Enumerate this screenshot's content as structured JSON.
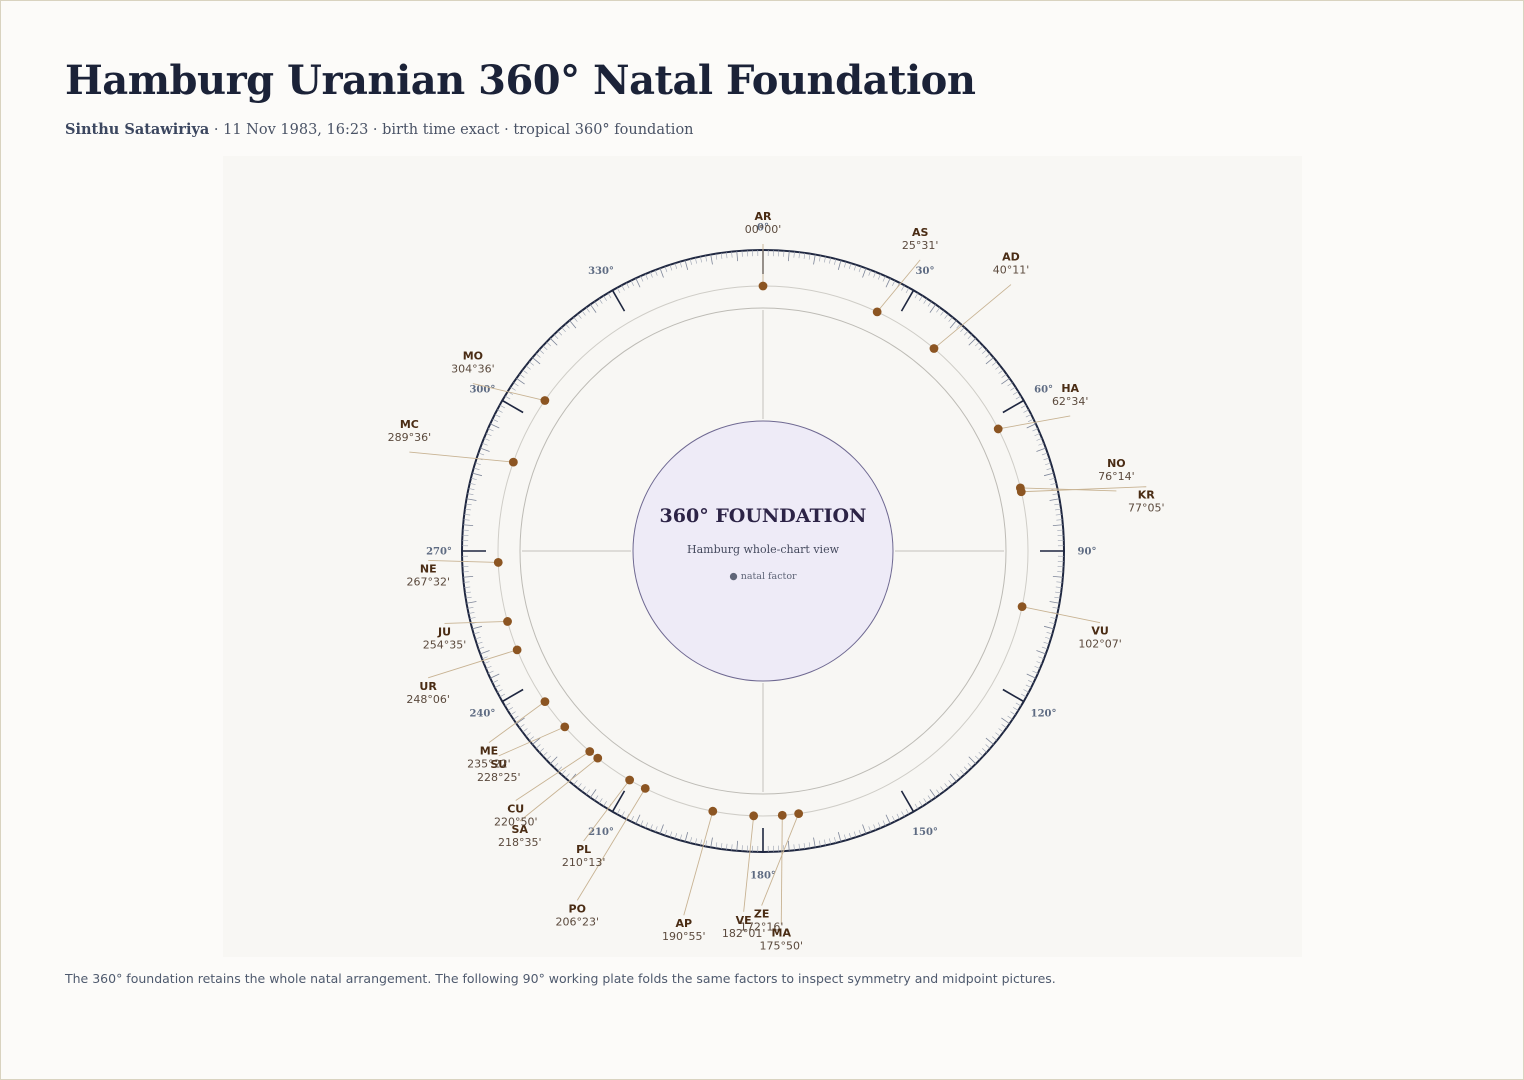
{
  "header": {
    "title": "Hamburg Uranian 360° Natal Foundation",
    "subject_name": "Sinthu Satawiriya",
    "subject_details": " · 11 Nov 1983, 16:23 · birth time exact · tropical 360° foundation"
  },
  "dial": {
    "center_title": "360° FOUNDATION",
    "center_subtitle": "Hamburg whole-chart view",
    "center_legend": "● natal factor",
    "degree_labels": [
      {
        "deg": 0,
        "label": "0°"
      },
      {
        "deg": 30,
        "label": "30°"
      },
      {
        "deg": 60,
        "label": "60°"
      },
      {
        "deg": 90,
        "label": "90°"
      },
      {
        "deg": 120,
        "label": "120°"
      },
      {
        "deg": 150,
        "label": "150°"
      },
      {
        "deg": 180,
        "label": "180°"
      },
      {
        "deg": 210,
        "label": "210°"
      },
      {
        "deg": 240,
        "label": "240°"
      },
      {
        "deg": 270,
        "label": "270°"
      },
      {
        "deg": 300,
        "label": "300°"
      },
      {
        "deg": 330,
        "label": "330°"
      }
    ],
    "factors": [
      {
        "code": "AR",
        "position": "00°00'",
        "degrees": 0.0
      },
      {
        "code": "AS",
        "position": "25°31'",
        "degrees": 25.52
      },
      {
        "code": "AD",
        "position": "40°11'",
        "degrees": 40.18
      },
      {
        "code": "HA",
        "position": "62°34'",
        "degrees": 62.57
      },
      {
        "code": "NO",
        "position": "76°14'",
        "degrees": 76.23
      },
      {
        "code": "KR",
        "position": "77°05'",
        "degrees": 77.08
      },
      {
        "code": "VU",
        "position": "102°07'",
        "degrees": 102.12
      },
      {
        "code": "ZE",
        "position": "172°16'",
        "degrees": 172.27
      },
      {
        "code": "MA",
        "position": "175°50'",
        "degrees": 175.83
      },
      {
        "code": "VE",
        "position": "182°01'",
        "degrees": 182.02
      },
      {
        "code": "AP",
        "position": "190°55'",
        "degrees": 190.92
      },
      {
        "code": "PO",
        "position": "206°23'",
        "degrees": 206.38
      },
      {
        "code": "PL",
        "position": "210°13'",
        "degrees": 210.22
      },
      {
        "code": "SA",
        "position": "218°35'",
        "degrees": 218.58
      },
      {
        "code": "CU",
        "position": "220°50'",
        "degrees": 220.83
      },
      {
        "code": "SU",
        "position": "228°25'",
        "degrees": 228.42
      },
      {
        "code": "ME",
        "position": "235°22'",
        "degrees": 235.37
      },
      {
        "code": "UR",
        "position": "248°06'",
        "degrees": 248.1
      },
      {
        "code": "JU",
        "position": "254°35'",
        "degrees": 254.58
      },
      {
        "code": "NE",
        "position": "267°32'",
        "degrees": 267.53
      },
      {
        "code": "MC",
        "position": "289°36'",
        "degrees": 289.6
      },
      {
        "code": "MO",
        "position": "304°36'",
        "degrees": 304.6
      }
    ],
    "colors": {
      "dot": "#8c5522",
      "leader": "#c8b393",
      "ring": "#1f2740",
      "center_fill": "#eeebf7",
      "center_stroke": "#6e6891"
    }
  },
  "caption": "The 360° foundation retains the whole natal arrangement. The following 90° working plate folds the same factors to inspect symmetry and midpoint pictures."
}
